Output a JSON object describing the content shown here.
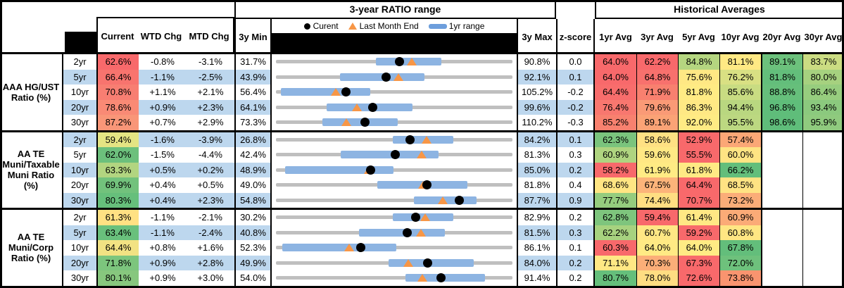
{
  "chart_data": {
    "type": "table",
    "title": "3-year RATIO range",
    "right_title": "Historical Averages",
    "legend": [
      {
        "marker": "dot-icon",
        "label": "Curent"
      },
      {
        "marker": "triangle-icon",
        "label": "Last Month End"
      },
      {
        "marker": "bar-icon",
        "label": "1yr range"
      }
    ],
    "columns": [
      "Current",
      "WTD Chg",
      "MTD Chg",
      "3y Min",
      "3y Max",
      "z-score",
      "1yr Avg",
      "3yr Avg",
      "5yr Avg",
      "10yr Avg",
      "20yr Avg",
      "30yr Avg"
    ],
    "colors": {
      "alt_row": "#BDD7EE",
      "range_line": "#BFBFBF",
      "yr_bar": "#8DB4E2",
      "current_dot": "#000000",
      "lme_triangle": "#F79646",
      "legend_bar": "#6D9EDC"
    },
    "groups": [
      {
        "label": "AAA HG/UST Ratio (%)",
        "label_lines": [
          "AAA HG/UST",
          "Ratio (%)"
        ],
        "rows": [
          {
            "tenor": "2yr",
            "current": {
              "text": "62.6%",
              "bg": "#F8696B"
            },
            "wtd": "-0.8%",
            "mtd": "-3.1%",
            "min": "31.7%",
            "max": "90.8%",
            "zscore": "0.0",
            "range": {
              "min": 31.7,
              "max": 90.8,
              "current": 62.6,
              "last_month_end": 65.7,
              "yr_low": 56.6,
              "yr_high": 73.0
            },
            "avgs": [
              {
                "text": "64.0%",
                "bg": "#F8696B"
              },
              {
                "text": "62.2%",
                "bg": "#F8696B"
              },
              {
                "text": "84.8%",
                "bg": "#B5D680"
              },
              {
                "text": "81.1%",
                "bg": "#FFE984"
              },
              {
                "text": "89.1%",
                "bg": "#6CC17C"
              },
              {
                "text": "83.7%",
                "bg": "#CBDC82"
              }
            ]
          },
          {
            "tenor": "5yr",
            "current": {
              "text": "66.4%",
              "bg": "#F8746E"
            },
            "wtd": "-1.1%",
            "mtd": "-2.5%",
            "min": "43.9%",
            "max": "92.1%",
            "zscore": "0.1",
            "range": {
              "min": 43.9,
              "max": 92.1,
              "current": 66.4,
              "last_month_end": 68.9,
              "yr_low": 56.9,
              "yr_high": 74.1
            },
            "avgs": [
              {
                "text": "64.0%",
                "bg": "#F8696B"
              },
              {
                "text": "64.8%",
                "bg": "#F8716D"
              },
              {
                "text": "75.6%",
                "bg": "#FFE884"
              },
              {
                "text": "76.2%",
                "bg": "#D9E083"
              },
              {
                "text": "81.8%",
                "bg": "#63BE7B"
              },
              {
                "text": "80.0%",
                "bg": "#A6D17F"
              }
            ]
          },
          {
            "tenor": "10yr",
            "current": {
              "text": "70.8%",
              "bg": "#F87E72"
            },
            "wtd": "+1.1%",
            "mtd": "+2.1%",
            "min": "56.4%",
            "max": "105.2%",
            "zscore": "-0.2",
            "range": {
              "min": 56.4,
              "max": 105.2,
              "current": 70.8,
              "last_month_end": 68.7,
              "yr_low": 57.4,
              "yr_high": 75.8
            },
            "avgs": [
              {
                "text": "64.4%",
                "bg": "#F86D6C"
              },
              {
                "text": "71.9%",
                "bg": "#F8806F"
              },
              {
                "text": "81.8%",
                "bg": "#FFEB84"
              },
              {
                "text": "85.6%",
                "bg": "#C9DC82"
              },
              {
                "text": "88.8%",
                "bg": "#66BF7B"
              },
              {
                "text": "86.4%",
                "bg": "#97CD7E"
              }
            ]
          },
          {
            "tenor": "20yr",
            "current": {
              "text": "78.6%",
              "bg": "#F98A75"
            },
            "wtd": "+0.9%",
            "mtd": "+2.3%",
            "min": "64.1%",
            "max": "99.6%",
            "zscore": "-0.2",
            "range": {
              "min": 64.1,
              "max": 99.6,
              "current": 78.6,
              "last_month_end": 76.3,
              "yr_low": 71.7,
              "yr_high": 84.6
            },
            "avgs": [
              {
                "text": "76.4%",
                "bg": "#F8776F"
              },
              {
                "text": "79.6%",
                "bg": "#FA9A76"
              },
              {
                "text": "86.3%",
                "bg": "#FFE884"
              },
              {
                "text": "94.4%",
                "bg": "#B9D780"
              },
              {
                "text": "96.8%",
                "bg": "#5FBD7A"
              },
              {
                "text": "93.4%",
                "bg": "#8BC97E"
              }
            ]
          },
          {
            "tenor": "30yr",
            "current": {
              "text": "87.2%",
              "bg": "#F99678"
            },
            "wtd": "+0.7%",
            "mtd": "+2.9%",
            "min": "73.3%",
            "max": "110.2%",
            "zscore": "-0.3",
            "range": {
              "min": 73.3,
              "max": 110.2,
              "current": 87.2,
              "last_month_end": 84.3,
              "yr_low": 80.6,
              "yr_high": 92.3
            },
            "avgs": [
              {
                "text": "85.2%",
                "bg": "#F8816F"
              },
              {
                "text": "89.1%",
                "bg": "#FBA376"
              },
              {
                "text": "92.0%",
                "bg": "#FFEB84"
              },
              {
                "text": "95.5%",
                "bg": "#BCD881"
              },
              {
                "text": "98.6%",
                "bg": "#5FBD7A"
              },
              {
                "text": "95.9%",
                "bg": "#8FCA7E"
              }
            ]
          }
        ]
      },
      {
        "label": "AA TE Muni/Taxable Muni Ratio (%)",
        "label_lines": [
          "AA TE",
          "Muni/Taxable",
          "Muni Ratio",
          "(%)"
        ],
        "rows": [
          {
            "tenor": "2yr",
            "current": {
              "text": "59.4%",
              "bg": "#E4E483"
            },
            "wtd": "-1.6%",
            "mtd": "-3.9%",
            "min": "26.8%",
            "max": "84.2%",
            "zscore": "0.1",
            "range": {
              "min": 26.8,
              "max": 84.2,
              "current": 59.4,
              "last_month_end": 63.3,
              "yr_low": 55.2,
              "yr_high": 69.9
            },
            "avgs": [
              {
                "text": "62.3%",
                "bg": "#7AC47D"
              },
              {
                "text": "58.6%",
                "bg": "#FFE183"
              },
              {
                "text": "52.9%",
                "bg": "#F8696B"
              },
              {
                "text": "57.4%",
                "bg": "#FBA776"
              },
              {
                "text": "",
                "bg": "#FFFFFF"
              },
              {
                "text": "",
                "bg": "#FFFFFF"
              }
            ]
          },
          {
            "tenor": "5yr",
            "current": {
              "text": "62.0%",
              "bg": "#6CC07C"
            },
            "wtd": "-1.5%",
            "mtd": "-4.4%",
            "min": "42.4%",
            "max": "81.3%",
            "zscore": "0.3",
            "range": {
              "min": 42.4,
              "max": 81.3,
              "current": 62.0,
              "last_month_end": 66.4,
              "yr_low": 53.0,
              "yr_high": 69.1
            },
            "avgs": [
              {
                "text": "60.9%",
                "bg": "#AFD480"
              },
              {
                "text": "59.6%",
                "bg": "#FFE884"
              },
              {
                "text": "55.5%",
                "bg": "#F8696B"
              },
              {
                "text": "60.0%",
                "bg": "#FFE483"
              },
              {
                "text": "",
                "bg": "#FFFFFF"
              },
              {
                "text": "",
                "bg": "#FFFFFF"
              }
            ]
          },
          {
            "tenor": "10yr",
            "current": {
              "text": "63.3%",
              "bg": "#B2D580"
            },
            "wtd": "+0.5%",
            "mtd": "+0.2%",
            "min": "48.9%",
            "max": "85.0%",
            "zscore": "0.2",
            "range": {
              "min": 48.9,
              "max": 85.0,
              "current": 63.3,
              "last_month_end": 63.1,
              "yr_low": 50.3,
              "yr_high": 66.8
            },
            "avgs": [
              {
                "text": "58.2%",
                "bg": "#F8696B"
              },
              {
                "text": "61.9%",
                "bg": "#FFEB84"
              },
              {
                "text": "61.8%",
                "bg": "#FFEA84"
              },
              {
                "text": "66.2%",
                "bg": "#63BE7B"
              },
              {
                "text": "",
                "bg": "#FFFFFF"
              },
              {
                "text": "",
                "bg": "#FFFFFF"
              }
            ]
          },
          {
            "tenor": "20yr",
            "current": {
              "text": "69.9%",
              "bg": "#72C27C"
            },
            "wtd": "+0.4%",
            "mtd": "+0.5%",
            "min": "49.0%",
            "max": "81.8%",
            "zscore": "0.4",
            "range": {
              "min": 49.0,
              "max": 81.8,
              "current": 69.9,
              "last_month_end": 69.4,
              "yr_low": 63.1,
              "yr_high": 75.6
            },
            "avgs": [
              {
                "text": "68.6%",
                "bg": "#FFE583"
              },
              {
                "text": "67.5%",
                "bg": "#FCB47A"
              },
              {
                "text": "64.4%",
                "bg": "#F8696B"
              },
              {
                "text": "68.5%",
                "bg": "#FFE383"
              },
              {
                "text": "",
                "bg": "#FFFFFF"
              },
              {
                "text": "",
                "bg": "#FFFFFF"
              }
            ]
          },
          {
            "tenor": "30yr",
            "current": {
              "text": "80.3%",
              "bg": "#66BF7B"
            },
            "wtd": "+0.4%",
            "mtd": "+2.3%",
            "min": "54.8%",
            "max": "87.7%",
            "zscore": "0.9",
            "range": {
              "min": 54.8,
              "max": 87.7,
              "current": 80.3,
              "last_month_end": 78.0,
              "yr_low": 74.0,
              "yr_high": 82.7
            },
            "avgs": [
              {
                "text": "77.7%",
                "bg": "#95CC7E"
              },
              {
                "text": "74.4%",
                "bg": "#FFDE82"
              },
              {
                "text": "70.7%",
                "bg": "#F8696B"
              },
              {
                "text": "73.2%",
                "bg": "#FBAD78"
              },
              {
                "text": "",
                "bg": "#FFFFFF"
              },
              {
                "text": "",
                "bg": "#FFFFFF"
              }
            ]
          }
        ]
      },
      {
        "label": "AA TE Muni/Corp Ratio (%)",
        "label_lines": [
          "AA TE",
          "Muni/Corp",
          "Ratio (%)"
        ],
        "rows": [
          {
            "tenor": "2yr",
            "current": {
              "text": "61.3%",
              "bg": "#FFE183"
            },
            "wtd": "-1.1%",
            "mtd": "-2.1%",
            "min": "30.2%",
            "max": "82.9%",
            "zscore": "0.2",
            "range": {
              "min": 30.2,
              "max": 82.9,
              "current": 61.3,
              "last_month_end": 63.4,
              "yr_low": 56.3,
              "yr_high": 69.8
            },
            "avgs": [
              {
                "text": "62.8%",
                "bg": "#7EC57D"
              },
              {
                "text": "59.4%",
                "bg": "#F8696B"
              },
              {
                "text": "61.4%",
                "bg": "#FFE884"
              },
              {
                "text": "60.9%",
                "bg": "#FBAB77"
              },
              {
                "text": "",
                "bg": "#FFFFFF"
              },
              {
                "text": "",
                "bg": "#FFFFFF"
              }
            ]
          },
          {
            "tenor": "5yr",
            "current": {
              "text": "63.4%",
              "bg": "#69C07C"
            },
            "wtd": "-1.1%",
            "mtd": "-2.4%",
            "min": "40.8%",
            "max": "81.5%",
            "zscore": "0.3",
            "range": {
              "min": 40.8,
              "max": 81.5,
              "current": 63.4,
              "last_month_end": 65.8,
              "yr_low": 55.1,
              "yr_high": 69.9
            },
            "avgs": [
              {
                "text": "62.2%",
                "bg": "#A7D27F"
              },
              {
                "text": "60.7%",
                "bg": "#FFE784"
              },
              {
                "text": "59.2%",
                "bg": "#F8696B"
              },
              {
                "text": "60.8%",
                "bg": "#FFE683"
              },
              {
                "text": "",
                "bg": "#FFFFFF"
              },
              {
                "text": "",
                "bg": "#FFFFFF"
              }
            ]
          },
          {
            "tenor": "10yr",
            "current": {
              "text": "64.4%",
              "bg": "#F2E283"
            },
            "wtd": "+0.8%",
            "mtd": "+1.6%",
            "min": "52.3%",
            "max": "86.1%",
            "zscore": "0.1",
            "range": {
              "min": 52.3,
              "max": 86.1,
              "current": 64.4,
              "last_month_end": 62.8,
              "yr_low": 53.2,
              "yr_high": 69.5
            },
            "avgs": [
              {
                "text": "60.3%",
                "bg": "#F8696B"
              },
              {
                "text": "64.0%",
                "bg": "#FFEA84"
              },
              {
                "text": "64.0%",
                "bg": "#FFEB84"
              },
              {
                "text": "67.8%",
                "bg": "#63BE7B"
              },
              {
                "text": "",
                "bg": "#FFFFFF"
              },
              {
                "text": "",
                "bg": "#FFFFFF"
              }
            ]
          },
          {
            "tenor": "20yr",
            "current": {
              "text": "71.8%",
              "bg": "#7CC57D"
            },
            "wtd": "+0.9%",
            "mtd": "+2.8%",
            "min": "49.9%",
            "max": "84.0%",
            "zscore": "0.2",
            "range": {
              "min": 49.9,
              "max": 84.0,
              "current": 71.8,
              "last_month_end": 69.0,
              "yr_low": 66.1,
              "yr_high": 78.4
            },
            "avgs": [
              {
                "text": "71.1%",
                "bg": "#FFE884"
              },
              {
                "text": "70.3%",
                "bg": "#FBAE78"
              },
              {
                "text": "67.3%",
                "bg": "#F8696B"
              },
              {
                "text": "72.0%",
                "bg": "#6EC17C"
              },
              {
                "text": "",
                "bg": "#FFFFFF"
              },
              {
                "text": "",
                "bg": "#FFFFFF"
              }
            ]
          },
          {
            "tenor": "30yr",
            "current": {
              "text": "80.1%",
              "bg": "#87C77E"
            },
            "wtd": "+0.9%",
            "mtd": "+3.0%",
            "min": "54.0%",
            "max": "91.4%",
            "zscore": "0.2",
            "range": {
              "min": 54.0,
              "max": 91.4,
              "current": 80.1,
              "last_month_end": 77.1,
              "yr_low": 74.5,
              "yr_high": 87.1
            },
            "avgs": [
              {
                "text": "80.7%",
                "bg": "#65BF7B"
              },
              {
                "text": "78.0%",
                "bg": "#FFDD82"
              },
              {
                "text": "72.6%",
                "bg": "#F8696B"
              },
              {
                "text": "73.8%",
                "bg": "#F9946F"
              },
              {
                "text": "",
                "bg": "#FFFFFF"
              },
              {
                "text": "",
                "bg": "#FFFFFF"
              }
            ]
          }
        ]
      }
    ]
  }
}
